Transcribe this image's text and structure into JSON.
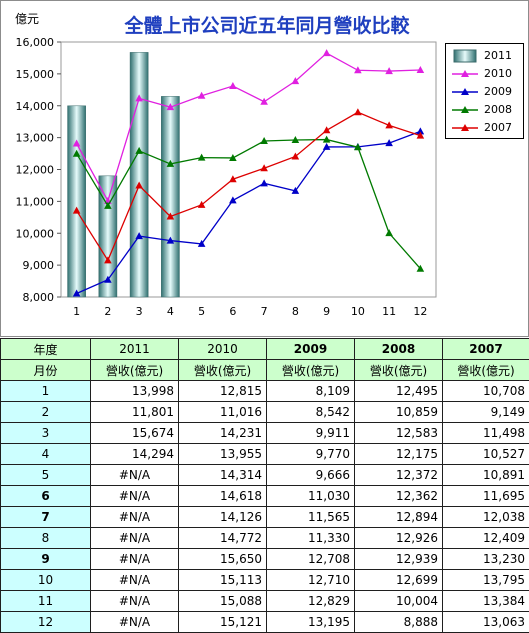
{
  "chart_data": {
    "type": "bar+line",
    "title": "全體上市公司近五年同月營收比較",
    "ylabel": "億元",
    "categories": [
      "1",
      "2",
      "3",
      "4",
      "5",
      "6",
      "7",
      "8",
      "9",
      "10",
      "11",
      "12"
    ],
    "ylim": [
      8000,
      16000
    ],
    "yticks": [
      "8,000",
      "9,000",
      "10,000",
      "11,000",
      "12,000",
      "13,000",
      "14,000",
      "15,000",
      "16,000"
    ],
    "grid": false,
    "legend_position": "right",
    "series": [
      {
        "name": "2011",
        "kind": "bar",
        "color": "#6fb7b7",
        "values": [
          13998,
          11801,
          15674,
          14294,
          null,
          null,
          null,
          null,
          null,
          null,
          null,
          null
        ]
      },
      {
        "name": "2010",
        "kind": "line",
        "color": "#e020e0",
        "values": [
          12815,
          11016,
          14231,
          13955,
          14314,
          14618,
          14126,
          14772,
          15650,
          15113,
          15088,
          15121
        ]
      },
      {
        "name": "2009",
        "kind": "line",
        "color": "#0000c8",
        "values": [
          8109,
          8542,
          9911,
          9770,
          9666,
          11030,
          11565,
          11330,
          12708,
          12710,
          12829,
          13195
        ]
      },
      {
        "name": "2008",
        "kind": "line",
        "color": "#007a00",
        "values": [
          12495,
          10859,
          12583,
          12175,
          12372,
          12362,
          12894,
          12926,
          12939,
          12699,
          10004,
          8888
        ]
      },
      {
        "name": "2007",
        "kind": "line",
        "color": "#dd0000",
        "values": [
          10708,
          9149,
          11498,
          10527,
          10891,
          11695,
          12038,
          12409,
          13230,
          13795,
          13384,
          13063
        ]
      }
    ]
  },
  "table": {
    "header_year_label": "年度",
    "header_month_label": "月份",
    "years": [
      "2011",
      "2010",
      "2009",
      "2008",
      "2007"
    ],
    "bold_years": [
      false,
      false,
      true,
      true,
      true
    ],
    "unit_label": "營收(億元)",
    "rows": [
      {
        "month": "1",
        "bold": false,
        "values": [
          "13,998",
          "12,815",
          "8,109",
          "12,495",
          "10,708"
        ]
      },
      {
        "month": "2",
        "bold": false,
        "values": [
          "11,801",
          "11,016",
          "8,542",
          "10,859",
          "9,149"
        ]
      },
      {
        "month": "3",
        "bold": false,
        "values": [
          "15,674",
          "14,231",
          "9,911",
          "12,583",
          "11,498"
        ]
      },
      {
        "month": "4",
        "bold": false,
        "values": [
          "14,294",
          "13,955",
          "9,770",
          "12,175",
          "10,527"
        ]
      },
      {
        "month": "5",
        "bold": false,
        "values": [
          "#N/A",
          "14,314",
          "9,666",
          "12,372",
          "10,891"
        ]
      },
      {
        "month": "6",
        "bold": true,
        "values": [
          "#N/A",
          "14,618",
          "11,030",
          "12,362",
          "11,695"
        ]
      },
      {
        "month": "7",
        "bold": true,
        "values": [
          "#N/A",
          "14,126",
          "11,565",
          "12,894",
          "12,038"
        ]
      },
      {
        "month": "8",
        "bold": false,
        "values": [
          "#N/A",
          "14,772",
          "11,330",
          "12,926",
          "12,409"
        ]
      },
      {
        "month": "9",
        "bold": true,
        "values": [
          "#N/A",
          "15,650",
          "12,708",
          "12,939",
          "13,230"
        ]
      },
      {
        "month": "10",
        "bold": false,
        "values": [
          "#N/A",
          "15,113",
          "12,710",
          "12,699",
          "13,795"
        ]
      },
      {
        "month": "11",
        "bold": false,
        "values": [
          "#N/A",
          "15,088",
          "12,829",
          "10,004",
          "13,384"
        ]
      },
      {
        "month": "12",
        "bold": false,
        "values": [
          "#N/A",
          "15,121",
          "13,195",
          "8,888",
          "13,063"
        ]
      }
    ]
  }
}
